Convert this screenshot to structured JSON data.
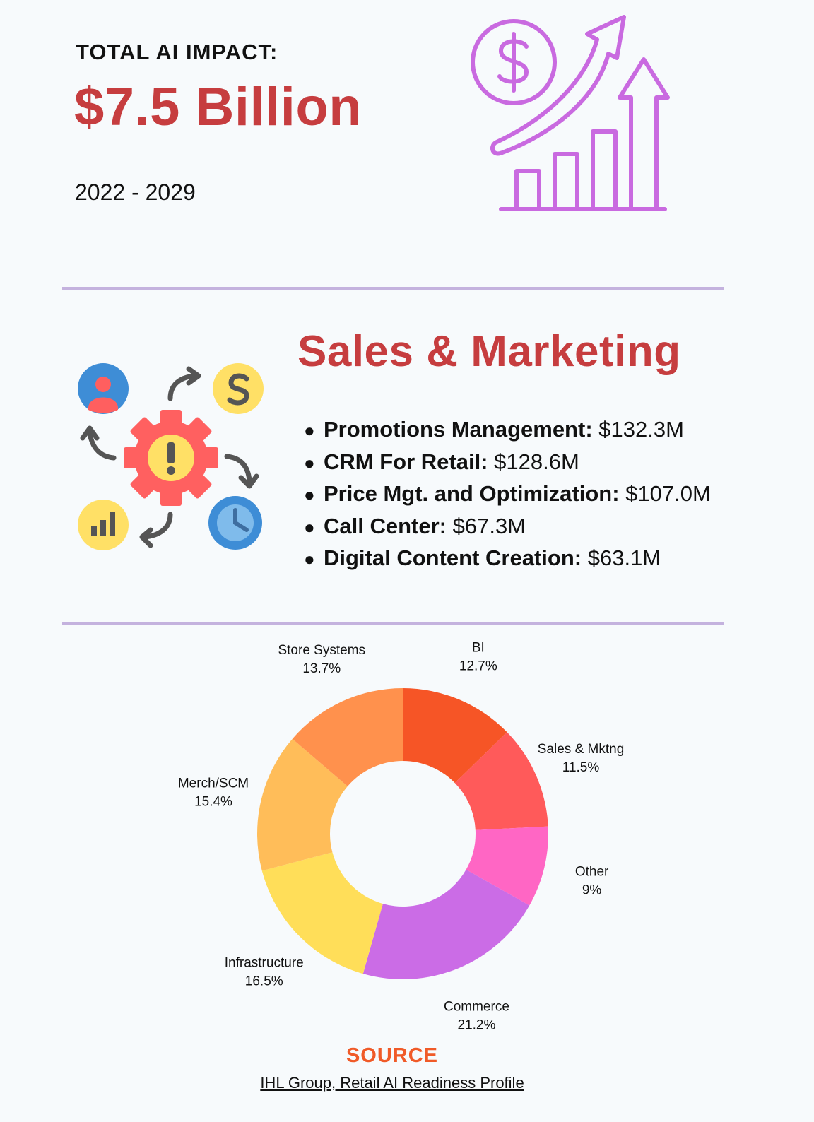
{
  "header": {
    "label": "TOTAL AI IMPACT:",
    "value": "$7.5 Billion",
    "range": "2022 - 2029"
  },
  "section": {
    "title": "Sales & Marketing",
    "items": [
      {
        "name": "Promotions Management:",
        "value": "$132.3M"
      },
      {
        "name": "CRM For Retail:",
        "value": "$128.6M"
      },
      {
        "name": "Price Mgt. and Optimization:",
        "value": "$107.0M"
      },
      {
        "name": "Call Center:",
        "value": "$67.3M"
      },
      {
        "name": "Digital Content Creation:",
        "value": "$63.1M"
      }
    ]
  },
  "icons": {
    "top_right": "growth-chart-dollar-icon",
    "section": "workflow-gear-icon"
  },
  "colors": {
    "accent_red": "#c63d3f",
    "source_orange": "#f05a28",
    "divider": "#c4b2de",
    "icon_purple": "#c96ae0"
  },
  "chart_data": {
    "type": "donut",
    "categories": [
      "BI",
      "Sales & Mktng",
      "Other",
      "Commerce",
      "Infrastructure",
      "Merch/SCM",
      "Store Systems"
    ],
    "values": [
      12.7,
      11.5,
      9,
      21.2,
      16.5,
      15.4,
      13.7
    ],
    "value_labels": [
      "12.7%",
      "11.5%",
      "9%",
      "21.2%",
      "16.5%",
      "15.4%",
      "13.7%"
    ],
    "colors": [
      "#f65526",
      "#ff5a5a",
      "#ff66c4",
      "#cb6ce6",
      "#ffde59",
      "#ffbd59",
      "#ff914d"
    ],
    "unit": "%"
  },
  "source": {
    "title": "SOURCE",
    "text": "IHL Group, Retail AI Readiness Profile"
  }
}
